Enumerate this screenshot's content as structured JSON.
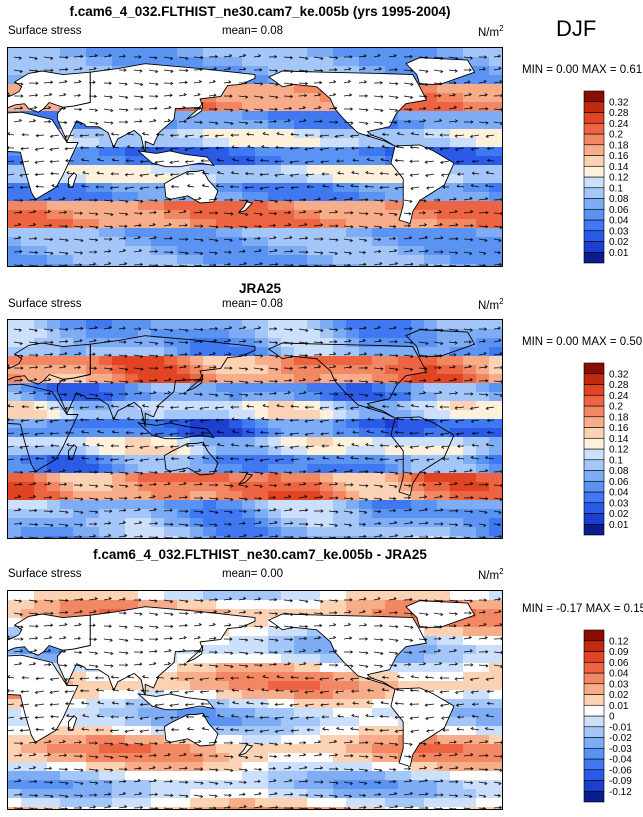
{
  "season_label": "DJF",
  "panels": [
    {
      "title": "f.cam6_4_032.FLTHIST_ne30.cam7_ke.005b (yrs 1995-2004)",
      "left_label": "Surface stress",
      "mean_text": "mean=  0.08",
      "units": "N/m",
      "units_exp": "2",
      "minmax": "MIN =  0.00 MAX =  0.61"
    },
    {
      "title": "JRA25",
      "left_label": "Surface stress",
      "mean_text": "mean=  0.08",
      "units": "N/m",
      "units_exp": "2",
      "minmax": "MIN =  0.00 MAX =  0.50"
    },
    {
      "title": "f.cam6_4_032.FLTHIST_ne30.cam7_ke.005b - JRA25",
      "left_label": "Surface stress",
      "mean_text": "mean=  0.00",
      "units": "N/m",
      "units_exp": "2",
      "minmax": "MIN = -0.17 MAX =  0.15"
    }
  ],
  "colors": {
    "stress_scale": [
      "#0a1d8c",
      "#1c3fcf",
      "#2b5be6",
      "#3f78f0",
      "#5b93f3",
      "#7eacf5",
      "#a4c6f8",
      "#cde0fb",
      "#fdf1dc",
      "#fbd2b4",
      "#f7ad8a",
      "#f28863",
      "#ec6441",
      "#e04422",
      "#c12a0c",
      "#8b0e04"
    ],
    "diff_scale": [
      "#0a1d8c",
      "#1c3fcf",
      "#2b5be6",
      "#3f78f0",
      "#5b93f3",
      "#7eacf5",
      "#a4c6f8",
      "#cde0fb",
      "#ffffff",
      "#fbd2b4",
      "#f7ad8a",
      "#f28863",
      "#ec6441",
      "#e04422",
      "#c12a0c",
      "#8b0e04"
    ]
  },
  "chart_data": [
    {
      "type": "heatmap",
      "title": "f.cam6_4_032.FLTHIST_ne30.cam7_ke.005b (yrs 1995-2004)",
      "variable": "Surface stress",
      "units": "N/m^2",
      "mean": 0.08,
      "min": 0.0,
      "max": 0.61,
      "colorbar_levels": [
        "0.01",
        "0.02",
        "0.03",
        "0.04",
        "0.06",
        "0.08",
        "0.1",
        "0.12",
        "0.14",
        "0.16",
        "0.18",
        "0.2",
        "0.24",
        "0.28",
        "0.32"
      ]
    },
    {
      "type": "heatmap",
      "title": "JRA25",
      "variable": "Surface stress",
      "units": "N/m^2",
      "mean": 0.08,
      "min": 0.0,
      "max": 0.5,
      "colorbar_levels": [
        "0.01",
        "0.02",
        "0.03",
        "0.04",
        "0.06",
        "0.08",
        "0.1",
        "0.12",
        "0.14",
        "0.16",
        "0.18",
        "0.2",
        "0.24",
        "0.28",
        "0.32"
      ]
    },
    {
      "type": "heatmap",
      "title": "f.cam6_4_032.FLTHIST_ne30.cam7_ke.005b - JRA25",
      "variable": "Surface stress",
      "units": "N/m^2",
      "mean": 0.0,
      "min": -0.17,
      "max": 0.15,
      "colorbar_levels": [
        "-0.12",
        "-0.09",
        "-0.06",
        "-0.04",
        "-0.03",
        "-0.02",
        "-0.01",
        "0",
        "0.01",
        "0.02",
        "0.03",
        "0.04",
        "0.06",
        "0.09",
        "0.12"
      ]
    }
  ]
}
